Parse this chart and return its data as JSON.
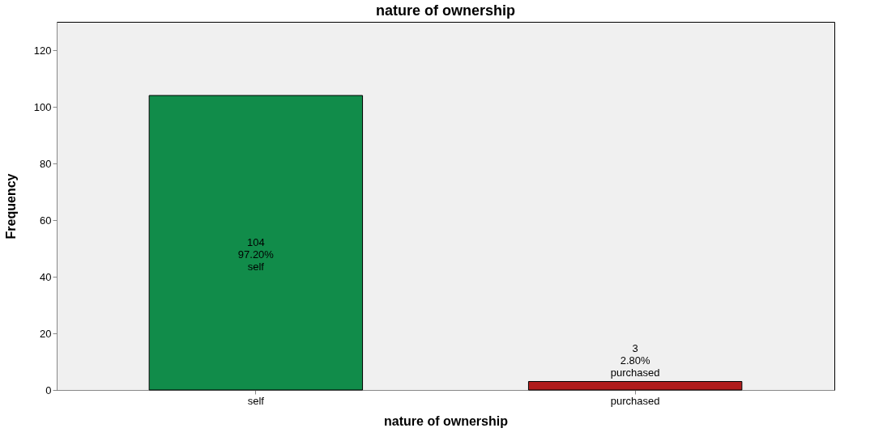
{
  "chart_data": {
    "type": "bar",
    "title": "nature of ownership",
    "xlabel": "nature of ownership",
    "ylabel": "Frequency",
    "categories": [
      "self",
      "purchased"
    ],
    "values": [
      104,
      3
    ],
    "colors": [
      "#118c4a",
      "#b01c1c"
    ],
    "value_labels": [
      "104\n97.20%\nself",
      "3\n2.80%\npurchased"
    ],
    "ylim": [
      0,
      130
    ],
    "yticks": [
      0,
      20,
      40,
      60,
      80,
      100,
      120
    ],
    "grid": false
  }
}
